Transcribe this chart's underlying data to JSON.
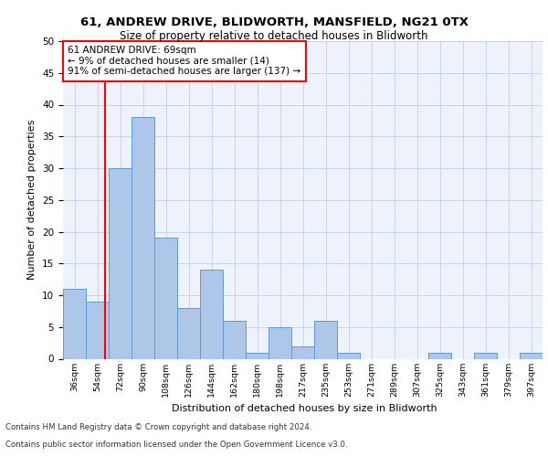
{
  "title1": "61, ANDREW DRIVE, BLIDWORTH, MANSFIELD, NG21 0TX",
  "title2": "Size of property relative to detached houses in Blidworth",
  "xlabel": "Distribution of detached houses by size in Blidworth",
  "ylabel": "Number of detached properties",
  "categories": [
    "36sqm",
    "54sqm",
    "72sqm",
    "90sqm",
    "108sqm",
    "126sqm",
    "144sqm",
    "162sqm",
    "180sqm",
    "198sqm",
    "217sqm",
    "235sqm",
    "253sqm",
    "271sqm",
    "289sqm",
    "307sqm",
    "325sqm",
    "343sqm",
    "361sqm",
    "379sqm",
    "397sqm"
  ],
  "values": [
    11,
    9,
    30,
    38,
    19,
    8,
    14,
    6,
    1,
    5,
    2,
    6,
    1,
    0,
    0,
    0,
    1,
    0,
    1,
    0,
    1
  ],
  "bar_color": "#aec6e8",
  "bar_edge_color": "#5b9bd5",
  "bar_width": 1.0,
  "ylim": [
    0,
    50
  ],
  "yticks": [
    0,
    5,
    10,
    15,
    20,
    25,
    30,
    35,
    40,
    45,
    50
  ],
  "annotation_text": "61 ANDREW DRIVE: 69sqm\n← 9% of detached houses are smaller (14)\n91% of semi-detached houses are larger (137) →",
  "footer1": "Contains HM Land Registry data © Crown copyright and database right 2024.",
  "footer2": "Contains public sector information licensed under the Open Government Licence v3.0.",
  "bg_color": "#eef2fa",
  "grid_color": "#c8d4e8"
}
